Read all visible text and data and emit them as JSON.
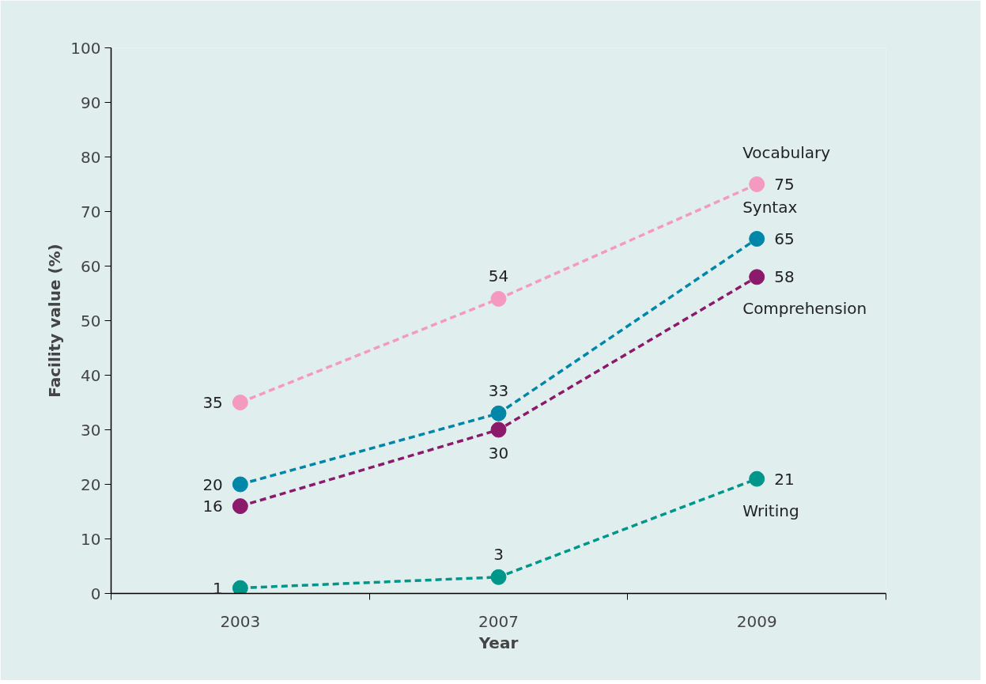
{
  "chart_data": {
    "type": "line",
    "xlabel": "Year",
    "ylabel": "Facility value (%)",
    "categories": [
      "2003",
      "2007",
      "2009"
    ],
    "ylim": [
      0,
      100
    ],
    "yticks": [
      0,
      10,
      20,
      30,
      40,
      50,
      60,
      70,
      80,
      90,
      100
    ],
    "grid": false,
    "marker": "circle",
    "line_style": "dashed",
    "data_labels": true,
    "series": [
      {
        "name": "Vocabulary",
        "color": "#f49ac1",
        "values": [
          35,
          54,
          75
        ]
      },
      {
        "name": "Syntax",
        "color": "#0086a8",
        "values": [
          20,
          33,
          65
        ]
      },
      {
        "name": "Comprehension",
        "color": "#8b1a6b",
        "values": [
          16,
          30,
          58
        ]
      },
      {
        "name": "Writing",
        "color": "#00968a",
        "values": [
          1,
          3,
          21
        ]
      }
    ]
  }
}
